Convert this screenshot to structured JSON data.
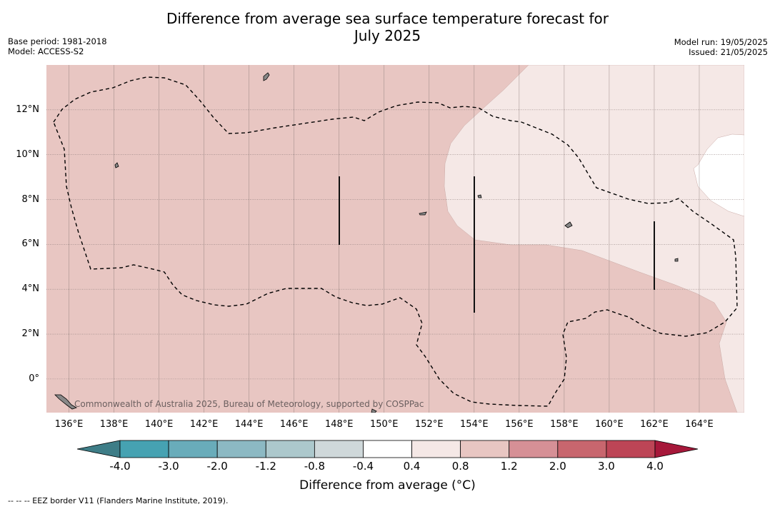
{
  "title": {
    "line1": "Difference from average sea surface temperature forecast for",
    "line2": "July 2025"
  },
  "meta": {
    "base_period": "Base period: 1981-2018",
    "model": "Model: ACCESS-S2",
    "model_run": "Model run: 19/05/2025",
    "issued": "Issued: 21/05/2025"
  },
  "map": {
    "lon_range": [
      135,
      166
    ],
    "lat_range": [
      -1.5,
      14
    ],
    "lat_ticks": [
      {
        "value": 12,
        "label": "12°N"
      },
      {
        "value": 10,
        "label": "10°N"
      },
      {
        "value": 8,
        "label": "8°N"
      },
      {
        "value": 6,
        "label": "6°N"
      },
      {
        "value": 4,
        "label": "4°N"
      },
      {
        "value": 2,
        "label": "2°N"
      },
      {
        "value": 0,
        "label": "0°"
      }
    ],
    "lon_ticks": [
      {
        "value": 136,
        "label": "136°E"
      },
      {
        "value": 138,
        "label": "138°E"
      },
      {
        "value": 140,
        "label": "140°E"
      },
      {
        "value": 142,
        "label": "142°E"
      },
      {
        "value": 144,
        "label": "144°E"
      },
      {
        "value": 146,
        "label": "146°E"
      },
      {
        "value": 148,
        "label": "148°E"
      },
      {
        "value": 150,
        "label": "150°E"
      },
      {
        "value": 152,
        "label": "152°E"
      },
      {
        "value": 154,
        "label": "154°E"
      },
      {
        "value": 156,
        "label": "156°E"
      },
      {
        "value": 158,
        "label": "158°E"
      },
      {
        "value": 160,
        "label": "160°E"
      },
      {
        "value": 162,
        "label": "162°E"
      },
      {
        "value": 164,
        "label": "164°E"
      }
    ],
    "fill_colors": {
      "anomaly_0.8_to_1.2": "#e8c6c2",
      "anomaly_0.4_to_0.8": "#f5e8e6",
      "anomaly_-0.4_to_0.4": "#ffffff"
    },
    "credit": "Commonwealth of Australia 2025, Bureau of Meteorology, supported by COSPPac"
  },
  "colorbar": {
    "label": "Difference from average (°C)",
    "extend_low_color": "#3e7d87",
    "extend_high_color": "#a6183a",
    "bins": [
      {
        "color": "#46a2b2"
      },
      {
        "color": "#69acba"
      },
      {
        "color": "#8cb9c3"
      },
      {
        "color": "#acc8cc"
      },
      {
        "color": "#cfd8da"
      },
      {
        "color": "#ffffff"
      },
      {
        "color": "#f5e8e6"
      },
      {
        "color": "#e8c6c2"
      },
      {
        "color": "#d69096"
      },
      {
        "color": "#c8666e"
      },
      {
        "color": "#bd4556"
      }
    ],
    "ticks": [
      "-4.0",
      "-3.0",
      "-2.0",
      "-1.2",
      "-0.8",
      "-0.4",
      "0.4",
      "0.8",
      "1.2",
      "2.0",
      "3.0",
      "4.0"
    ]
  },
  "legend_note": "--  --  -- EEZ border V11 (Flanders Marine Institute, 2019)."
}
